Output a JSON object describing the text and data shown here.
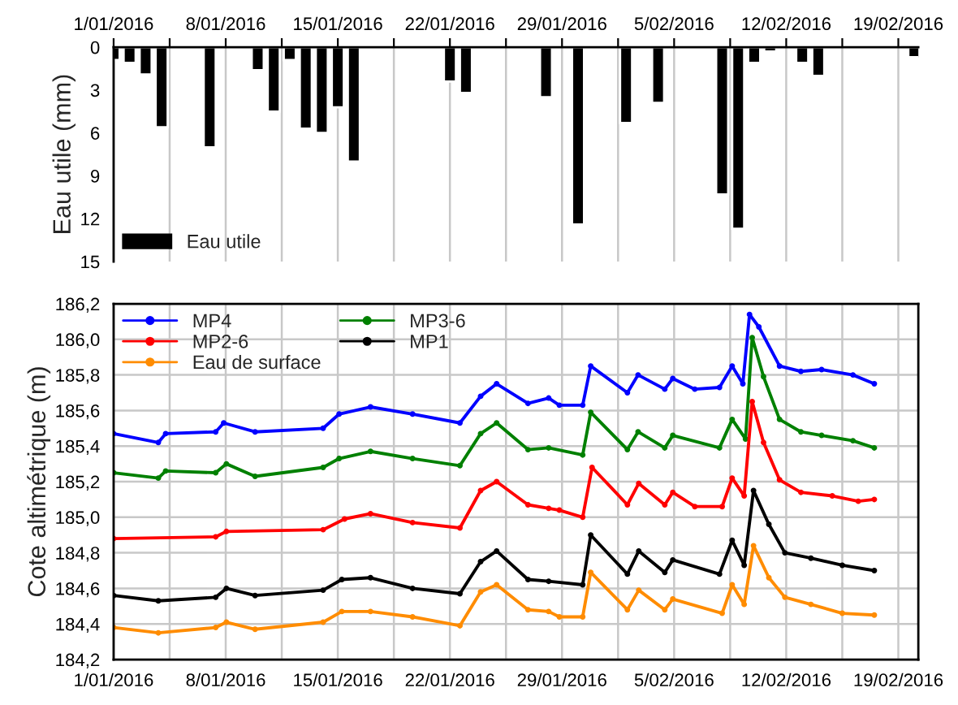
{
  "chart_data": [
    {
      "type": "bar",
      "ylabel": "Eau utile (mm)",
      "x": [
        "2016-01-01",
        "2016-01-02",
        "2016-01-03",
        "2016-01-04",
        "2016-01-07",
        "2016-01-10",
        "2016-01-11",
        "2016-01-12",
        "2016-01-13",
        "2016-01-14",
        "2016-01-15",
        "2016-01-16",
        "2016-01-22",
        "2016-01-23",
        "2016-01-28",
        "2016-01-30",
        "2016-02-02",
        "2016-02-04",
        "2016-02-08",
        "2016-02-09",
        "2016-02-10",
        "2016-02-11",
        "2016-02-13",
        "2016-02-14",
        "2016-02-20"
      ],
      "series": [
        {
          "name": "Eau utile",
          "color": "#000000",
          "values": [
            0.9,
            1.1,
            1.9,
            5.6,
            7.0,
            1.6,
            4.5,
            0.9,
            5.7,
            6.0,
            4.2,
            8.0,
            2.4,
            3.2,
            3.5,
            12.4,
            5.3,
            3.9,
            10.3,
            12.7,
            1.1,
            0.3,
            1.1,
            2.0,
            0.7
          ]
        }
      ],
      "xlim": [
        "2016-01-01",
        "2016-02-20T06:00"
      ],
      "xticks": [
        {
          "value": "2016-01-01",
          "label": "1/01/2016"
        },
        {
          "value": "2016-01-04T12:00",
          "label": null
        },
        {
          "value": "2016-01-08",
          "label": "8/01/2016"
        },
        {
          "value": "2016-01-11T12:00",
          "label": null
        },
        {
          "value": "2016-01-15",
          "label": "15/01/2016"
        },
        {
          "value": "2016-01-18T12:00",
          "label": null
        },
        {
          "value": "2016-01-22",
          "label": "22/01/2016"
        },
        {
          "value": "2016-01-25T12:00",
          "label": null
        },
        {
          "value": "2016-01-29",
          "label": "29/01/2016"
        },
        {
          "value": "2016-02-01T12:00",
          "label": null
        },
        {
          "value": "2016-02-05",
          "label": "5/02/2016"
        },
        {
          "value": "2016-02-08T12:00",
          "label": null
        },
        {
          "value": "2016-02-12",
          "label": "12/02/2016"
        },
        {
          "value": "2016-02-15T12:00",
          "label": null
        },
        {
          "value": "2016-02-19",
          "label": "19/02/2016"
        }
      ],
      "ylim": [
        15,
        0
      ],
      "yticks": [
        0,
        3,
        6,
        9,
        12,
        15
      ],
      "grid": "x",
      "legend": "bottom left"
    },
    {
      "type": "line",
      "ylabel": "Cote altimétrique (m)",
      "marker": "circle",
      "line_style": "solid",
      "series": [
        {
          "name": "MP4",
          "color": "#0000ff",
          "x": [
            "2016-01-01T00:00",
            "2016-01-03T19:00",
            "2016-01-04T06:00",
            "2016-01-07T09:00",
            "2016-01-07T21:00",
            "2016-01-09T20:00",
            "2016-01-14T02:00",
            "2016-01-15T02:00",
            "2016-01-17T01:00",
            "2016-01-19T16:00",
            "2016-01-22T15:00",
            "2016-01-23T22:00",
            "2016-01-24T22:00",
            "2016-01-26T21:00",
            "2016-01-28T04:00",
            "2016-01-28T20:00",
            "2016-01-30T07:00",
            "2016-01-30T19:00",
            "2016-02-02T02:00",
            "2016-02-02T18:00",
            "2016-02-04T10:00",
            "2016-02-04T22:00",
            "2016-02-06T07:00",
            "2016-02-07T20:00",
            "2016-02-08T15:00",
            "2016-02-09T07:00",
            "2016-02-09T17:00",
            "2016-02-10T07:00",
            "2016-02-11T14:00",
            "2016-02-12T22:00",
            "2016-02-14T05:00",
            "2016-02-16T04:00",
            "2016-02-17T12:00"
          ],
          "values": [
            185.47,
            185.42,
            185.47,
            185.48,
            185.53,
            185.48,
            185.5,
            185.58,
            185.62,
            185.58,
            185.53,
            185.68,
            185.75,
            185.64,
            185.67,
            185.63,
            185.63,
            185.85,
            185.7,
            185.8,
            185.72,
            185.78,
            185.72,
            185.73,
            185.85,
            185.75,
            186.14,
            186.07,
            185.85,
            185.82,
            185.83,
            185.8,
            185.75
          ]
        },
        {
          "name": "MP3-6",
          "color": "#008000",
          "x": [
            "2016-01-01T00:00",
            "2016-01-03T19:00",
            "2016-01-04T06:00",
            "2016-01-07T09:00",
            "2016-01-08T01:00",
            "2016-01-09T20:00",
            "2016-01-14T02:00",
            "2016-01-15T02:00",
            "2016-01-17T01:00",
            "2016-01-19T16:00",
            "2016-01-22T15:00",
            "2016-01-23T22:00",
            "2016-01-24T22:00",
            "2016-01-26T21:00",
            "2016-01-28T04:00",
            "2016-01-30T07:00",
            "2016-01-30T19:00",
            "2016-02-02T02:00",
            "2016-02-02T18:00",
            "2016-02-04T10:00",
            "2016-02-04T22:00",
            "2016-02-07T20:00",
            "2016-02-08T15:00",
            "2016-02-09T11:00",
            "2016-02-09T21:00",
            "2016-02-10T14:00",
            "2016-02-11T14:00",
            "2016-02-12T22:00",
            "2016-02-14T05:00",
            "2016-02-16T04:00",
            "2016-02-17T12:00"
          ],
          "values": [
            185.25,
            185.22,
            185.26,
            185.25,
            185.3,
            185.23,
            185.28,
            185.33,
            185.37,
            185.33,
            185.29,
            185.47,
            185.53,
            185.38,
            185.39,
            185.35,
            185.59,
            185.38,
            185.48,
            185.39,
            185.46,
            185.39,
            185.55,
            185.44,
            186.01,
            185.79,
            185.55,
            185.48,
            185.46,
            185.43,
            185.39
          ]
        },
        {
          "name": "MP2-6",
          "color": "#ff0000",
          "x": [
            "2016-01-01T00:00",
            "2016-01-07T09:00",
            "2016-01-08T01:00",
            "2016-01-14T02:00",
            "2016-01-15T10:00",
            "2016-01-17T01:00",
            "2016-01-19T16:00",
            "2016-01-22T15:00",
            "2016-01-23T22:00",
            "2016-01-24T22:00",
            "2016-01-26T21:00",
            "2016-01-28T04:00",
            "2016-01-28T20:00",
            "2016-01-30T07:00",
            "2016-01-30T21:00",
            "2016-02-02T02:00",
            "2016-02-02T19:00",
            "2016-02-04T10:00",
            "2016-02-04T22:00",
            "2016-02-06T07:00",
            "2016-02-08T00:00",
            "2016-02-08T15:00",
            "2016-02-09T09:00",
            "2016-02-09T21:00",
            "2016-02-10T14:00",
            "2016-02-11T14:00",
            "2016-02-12T22:00",
            "2016-02-14T21:00",
            "2016-02-16T12:00",
            "2016-02-17T12:00"
          ],
          "values": [
            184.88,
            184.89,
            184.92,
            184.93,
            184.99,
            185.02,
            184.97,
            184.94,
            185.15,
            185.2,
            185.07,
            185.05,
            185.04,
            185.0,
            185.28,
            185.07,
            185.19,
            185.07,
            185.14,
            185.06,
            185.06,
            185.22,
            185.12,
            185.65,
            185.42,
            185.21,
            185.14,
            185.12,
            185.09,
            185.1
          ]
        },
        {
          "name": "MP1",
          "color": "#000000",
          "x": [
            "2016-01-01T00:00",
            "2016-01-03T19:00",
            "2016-01-07T09:00",
            "2016-01-08T01:00",
            "2016-01-09T20:00",
            "2016-01-14T02:00",
            "2016-01-15T06:00",
            "2016-01-17T01:00",
            "2016-01-19T16:00",
            "2016-01-22T15:00",
            "2016-01-23T22:00",
            "2016-01-24T22:00",
            "2016-01-26T21:00",
            "2016-01-28T04:00",
            "2016-01-30T07:00",
            "2016-01-30T19:00",
            "2016-02-02T02:00",
            "2016-02-02T19:00",
            "2016-02-04T10:00",
            "2016-02-04T22:00",
            "2016-02-07T20:00",
            "2016-02-08T15:00",
            "2016-02-09T09:00",
            "2016-02-09T23:00",
            "2016-02-10T22:00",
            "2016-02-11T22:00",
            "2016-02-13T13:00",
            "2016-02-15T12:00",
            "2016-02-17T12:00"
          ],
          "values": [
            184.56,
            184.53,
            184.55,
            184.6,
            184.56,
            184.59,
            184.65,
            184.66,
            184.6,
            184.57,
            184.75,
            184.81,
            184.65,
            184.64,
            184.62,
            184.9,
            184.68,
            184.81,
            184.69,
            184.76,
            184.68,
            184.87,
            184.73,
            185.15,
            184.96,
            184.8,
            184.77,
            184.73,
            184.7
          ]
        },
        {
          "name": "Eau de surface",
          "color": "#ff8c00",
          "x": [
            "2016-01-01T00:00",
            "2016-01-03T19:00",
            "2016-01-07T09:00",
            "2016-01-08T01:00",
            "2016-01-09T20:00",
            "2016-01-14T02:00",
            "2016-01-15T06:00",
            "2016-01-17T01:00",
            "2016-01-19T16:00",
            "2016-01-22T15:00",
            "2016-01-23T22:00",
            "2016-01-24T22:00",
            "2016-01-26T21:00",
            "2016-01-28T04:00",
            "2016-01-28T20:00",
            "2016-01-30T07:00",
            "2016-01-30T19:00",
            "2016-02-02T02:00",
            "2016-02-02T19:00",
            "2016-02-04T10:00",
            "2016-02-04T22:00",
            "2016-02-08T00:00",
            "2016-02-08T15:00",
            "2016-02-09T09:00",
            "2016-02-09T23:00",
            "2016-02-10T22:00",
            "2016-02-11T22:00",
            "2016-02-13T13:00",
            "2016-02-15T12:00",
            "2016-02-17T12:00"
          ],
          "values": [
            184.38,
            184.35,
            184.38,
            184.41,
            184.37,
            184.41,
            184.47,
            184.47,
            184.44,
            184.39,
            184.58,
            184.62,
            184.48,
            184.47,
            184.44,
            184.44,
            184.69,
            184.48,
            184.59,
            184.48,
            184.54,
            184.46,
            184.62,
            184.51,
            184.84,
            184.66,
            184.55,
            184.51,
            184.46,
            184.45
          ]
        }
      ],
      "xlim": [
        "2016-01-01",
        "2016-02-20T06:00"
      ],
      "xticks": [
        {
          "value": "2016-01-01",
          "label": "1/01/2016"
        },
        {
          "value": "2016-01-04T12:00",
          "label": null
        },
        {
          "value": "2016-01-08",
          "label": "8/01/2016"
        },
        {
          "value": "2016-01-11T12:00",
          "label": null
        },
        {
          "value": "2016-01-15",
          "label": "15/01/2016"
        },
        {
          "value": "2016-01-18T12:00",
          "label": null
        },
        {
          "value": "2016-01-22",
          "label": "22/01/2016"
        },
        {
          "value": "2016-01-25T12:00",
          "label": null
        },
        {
          "value": "2016-01-29",
          "label": "29/01/2016"
        },
        {
          "value": "2016-02-01T12:00",
          "label": null
        },
        {
          "value": "2016-02-05",
          "label": "5/02/2016"
        },
        {
          "value": "2016-02-08T12:00",
          "label": null
        },
        {
          "value": "2016-02-12",
          "label": "12/02/2016"
        },
        {
          "value": "2016-02-15T12:00",
          "label": null
        },
        {
          "value": "2016-02-19",
          "label": "19/02/2016"
        }
      ],
      "ylim": [
        184.2,
        186.2
      ],
      "yticks": [
        {
          "value": 184.2,
          "label": "184,2"
        },
        {
          "value": 184.4,
          "label": "184,4"
        },
        {
          "value": 184.6,
          "label": "184,6"
        },
        {
          "value": 184.8,
          "label": "184,8"
        },
        {
          "value": 185.0,
          "label": "185,0"
        },
        {
          "value": 185.2,
          "label": "185,2"
        },
        {
          "value": 185.4,
          "label": "185,4"
        },
        {
          "value": 185.6,
          "label": "185,6"
        },
        {
          "value": 185.8,
          "label": "185,8"
        },
        {
          "value": 186.0,
          "label": "186,0"
        },
        {
          "value": 186.2,
          "label": "186,2"
        }
      ],
      "grid": true,
      "legend": "top left"
    }
  ]
}
